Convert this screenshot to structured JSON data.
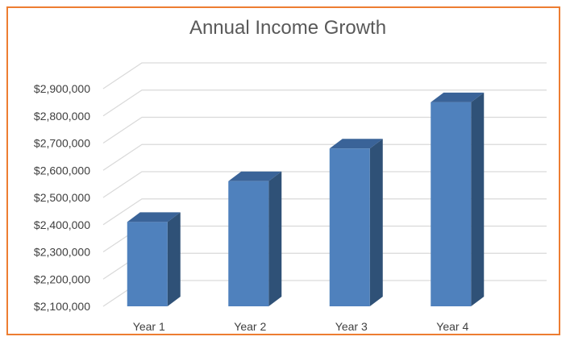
{
  "chart_data": {
    "type": "bar",
    "style": "3d-column",
    "title": "Annual Income Growth",
    "categories": [
      "Year 1",
      "Year 2",
      "Year 3",
      "Year 4"
    ],
    "values": [
      2410000,
      2560000,
      2680000,
      2850000
    ],
    "ylim": [
      2100000,
      2900000
    ],
    "yticks": [
      "$2,100,000",
      "$2,200,000",
      "$2,300,000",
      "$2,400,000",
      "$2,500,000",
      "$2,600,000",
      "$2,700,000",
      "$2,800,000",
      "$2,900,000"
    ],
    "grid": true,
    "legend": "none",
    "colors": {
      "bar_front": "#4F81BD",
      "bar_top": "#3A6398",
      "bar_side": "#2F5177",
      "gridline": "#D9D9D9",
      "border": "#ED7D31"
    }
  }
}
